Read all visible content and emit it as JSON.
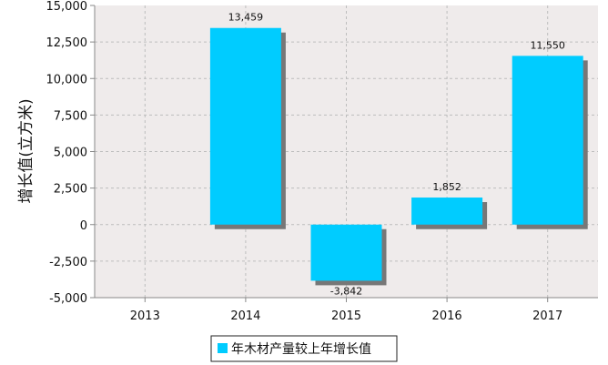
{
  "chart_data": {
    "type": "bar",
    "categories": [
      "2013",
      "2014",
      "2015",
      "2016",
      "2017"
    ],
    "series": [
      {
        "name": "年木材产量较上年增长值",
        "values": [
          null,
          13459,
          -3842,
          1852,
          11550
        ],
        "labels": [
          "",
          "13,459",
          "-3,842",
          "1,852",
          "11,550"
        ]
      }
    ],
    "ylabel": "增长值(立方米)",
    "xlabel": "",
    "ylim": [
      -5000,
      15000
    ],
    "yticks": [
      15000,
      12500,
      10000,
      7500,
      5000,
      2500,
      0,
      -2500,
      -5000
    ],
    "ytick_labels": [
      "15,000",
      "12,500",
      "10,000",
      "7,500",
      "5,000",
      "2,500",
      "0",
      "-2,500",
      "-5,000"
    ],
    "grid": true,
    "legend_position": "bottom",
    "colors": {
      "bar": "#00CCFF",
      "shadow": "#777777",
      "plot_background": "#EFEBEB",
      "grid": "#BDBDBD"
    }
  }
}
